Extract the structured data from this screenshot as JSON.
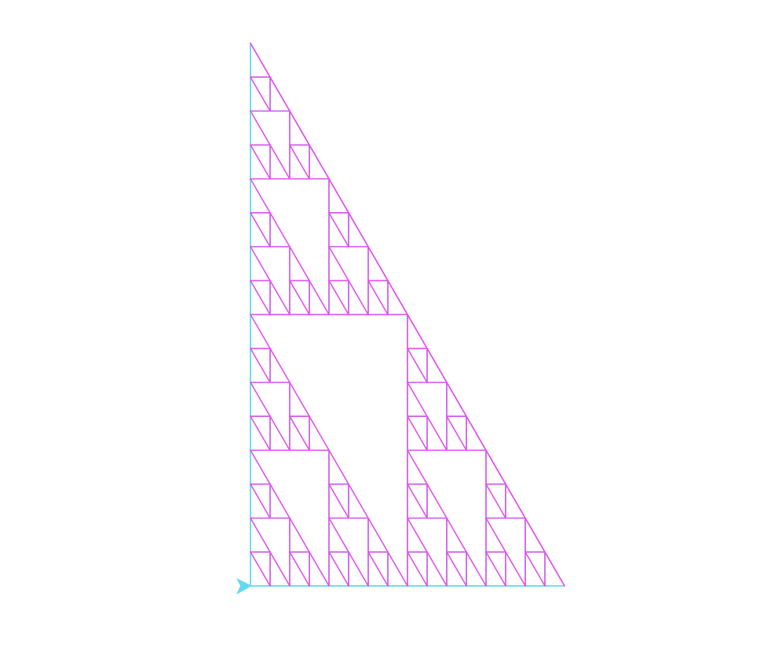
{
  "figure": {
    "kind": "sierpinski-right-triangle-turtle-drawing",
    "recursion_depth": 4,
    "colors": {
      "background": "#ffffff",
      "vertical_and_horizontal_edges": "#66d9f0",
      "diagonal_and_inner_edges": "#e052ec",
      "turtle_cursor": "#66d9f0"
    },
    "turtle": {
      "icon": "turtle-arrow-icon",
      "heading": "east"
    }
  }
}
